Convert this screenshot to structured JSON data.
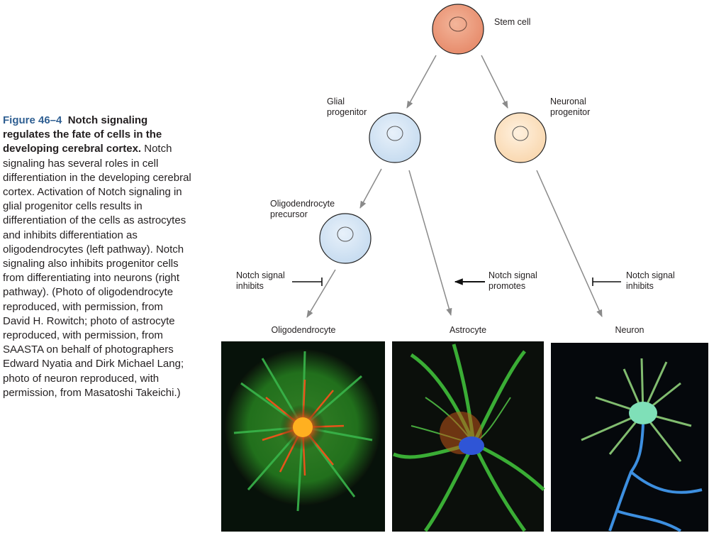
{
  "caption": {
    "figure_number": "Figure 46–4",
    "title": "Notch signaling regulates the fate of cells in the developing cerebral cortex.",
    "body": "Notch signaling has several roles in cell differentiation in the developing cerebral cortex. Activation of Notch signaling in glial progenitor cells results in differentiation of the cells as astrocytes and inhibits differentiation as oligodendrocytes (left pathway). Notch signaling also inhibits progenitor cells from differentiating into neurons (right pathway). (Photo of oligodendrocyte reproduced, with permission, from David H. Rowitch; photo of astrocyte reproduced, with permission, from SAASTA on behalf of photographers Edward Nyatia and Dirk Michael Lang; photo of neuron reproduced, with permission, from Masatoshi Takeichi.)"
  },
  "cells": {
    "stem": "Stem cell",
    "glial": "Glial\nprogenitor",
    "neuronal": "Neuronal\nprogenitor",
    "opc": "Oligodendrocyte\nprecursor"
  },
  "signals": {
    "left": "Notch signal\ninhibits",
    "middle": "Notch signal\npromotes",
    "right": "Notch signal\ninhibits"
  },
  "outcomes": {
    "oligodendrocyte": "Oligodendrocyte",
    "astrocyte": "Astrocyte",
    "neuron": "Neuron"
  },
  "colors": {
    "stem_fill": "#ec9c7e",
    "glial_fill": "#d5e6f5",
    "neuronal_fill": "#fde3c4",
    "opc_fill": "#d5e6f5",
    "arrow": "#8a8a8a",
    "figure_number": "#2f5f92"
  }
}
